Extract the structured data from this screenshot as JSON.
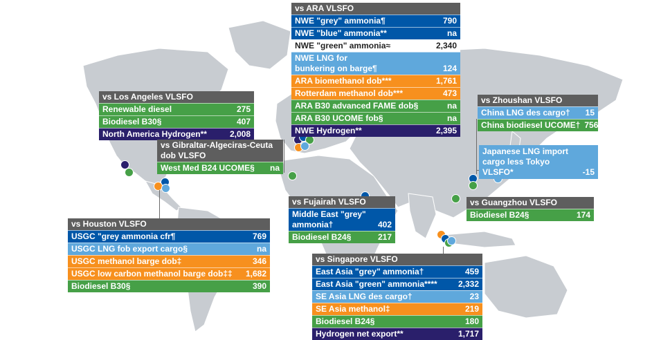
{
  "colors": {
    "grey_header": "#5e5e5e",
    "dark_blue": "#0057a8",
    "light_blue": "#5fa8dc",
    "green": "#46a047",
    "orange": "#f7901e",
    "navy": "#2a1f6b",
    "land": "#c8ccd1",
    "sea": "#ffffff"
  },
  "ara": {
    "title": "vs ARA VLSFO",
    "rows": [
      {
        "label": "NWE \"grey\" ammonia¶",
        "value": "790"
      },
      {
        "label": "NWE \"blue\" ammonia**",
        "value": "na"
      },
      {
        "label": "NWE \"green\" ammonia≈",
        "value": "2,340"
      },
      {
        "label": "NWE LNG for bunkering on barge¶",
        "value": "124"
      },
      {
        "label": "ARA biomethanol dob***",
        "value": "1,761"
      },
      {
        "label": "Rotterdam methanol dob***",
        "value": "473"
      },
      {
        "label": "ARA B30 advanced FAME dob§",
        "value": "na"
      },
      {
        "label": "ARA B30 UCOME fob§",
        "value": "na"
      },
      {
        "label": "NWE Hydrogen**",
        "value": "2,395"
      }
    ]
  },
  "los_angeles": {
    "title": "vs Los Angeles VLSFO",
    "rows": [
      {
        "label": "Renewable diesel",
        "value": "275"
      },
      {
        "label": "Biodiesel B30§",
        "value": "407"
      },
      {
        "label": "North America Hydrogen**",
        "value": "2,008"
      }
    ]
  },
  "gibraltar": {
    "title": "vs Gibraltar-Algeciras-Ceuta dob VLSFO",
    "rows": [
      {
        "label": "West Med B24 UCOME§",
        "value": "na"
      }
    ]
  },
  "zhoushan": {
    "title": "vs Zhoushan VLSFO",
    "rows": [
      {
        "label": "China LNG des cargo†",
        "value": "15"
      },
      {
        "label": "China biodiesel UCOME†",
        "value": "756"
      }
    ]
  },
  "japan": {
    "rows": [
      {
        "label": "Japanese LNG import cargo less Tokyo VLSFO*",
        "value": "-15"
      }
    ]
  },
  "fujairah": {
    "title": "vs Fujairah VLSFO",
    "rows": [
      {
        "label": "Middle East \"grey\" ammonia†",
        "value": "402"
      },
      {
        "label": "Biodiesel B24§",
        "value": "217"
      }
    ]
  },
  "guangzhou": {
    "title": "vs Guangzhou VLSFO",
    "rows": [
      {
        "label": "Biodiesel B24§",
        "value": "174"
      }
    ]
  },
  "houston": {
    "title": "vs Houston VLSFO",
    "rows": [
      {
        "label": "USGC \"grey ammonia cfr¶",
        "value": "769"
      },
      {
        "label": "USGC LNG fob export cargo§",
        "value": "na"
      },
      {
        "label": "USGC methanol barge dob‡",
        "value": "346"
      },
      {
        "label": "USGC low carbon methanol barge dob‡‡",
        "value": "1,682"
      },
      {
        "label": "Biodiesel B30§",
        "value": "390"
      }
    ]
  },
  "singapore": {
    "title": "vs Singapore VLSFO",
    "rows": [
      {
        "label": "East Asia \"grey\" ammonia†",
        "value": "459"
      },
      {
        "label": "East Asia \"green\" ammonia****",
        "value": "2,332"
      },
      {
        "label": "SE Asia LNG des cargo†",
        "value": "23"
      },
      {
        "label": "SE Asia methanol‡",
        "value": "219"
      },
      {
        "label": "Biodiesel B24§",
        "value": "180"
      },
      {
        "label": "Hydrogen net export**",
        "value": "1,717"
      }
    ]
  }
}
